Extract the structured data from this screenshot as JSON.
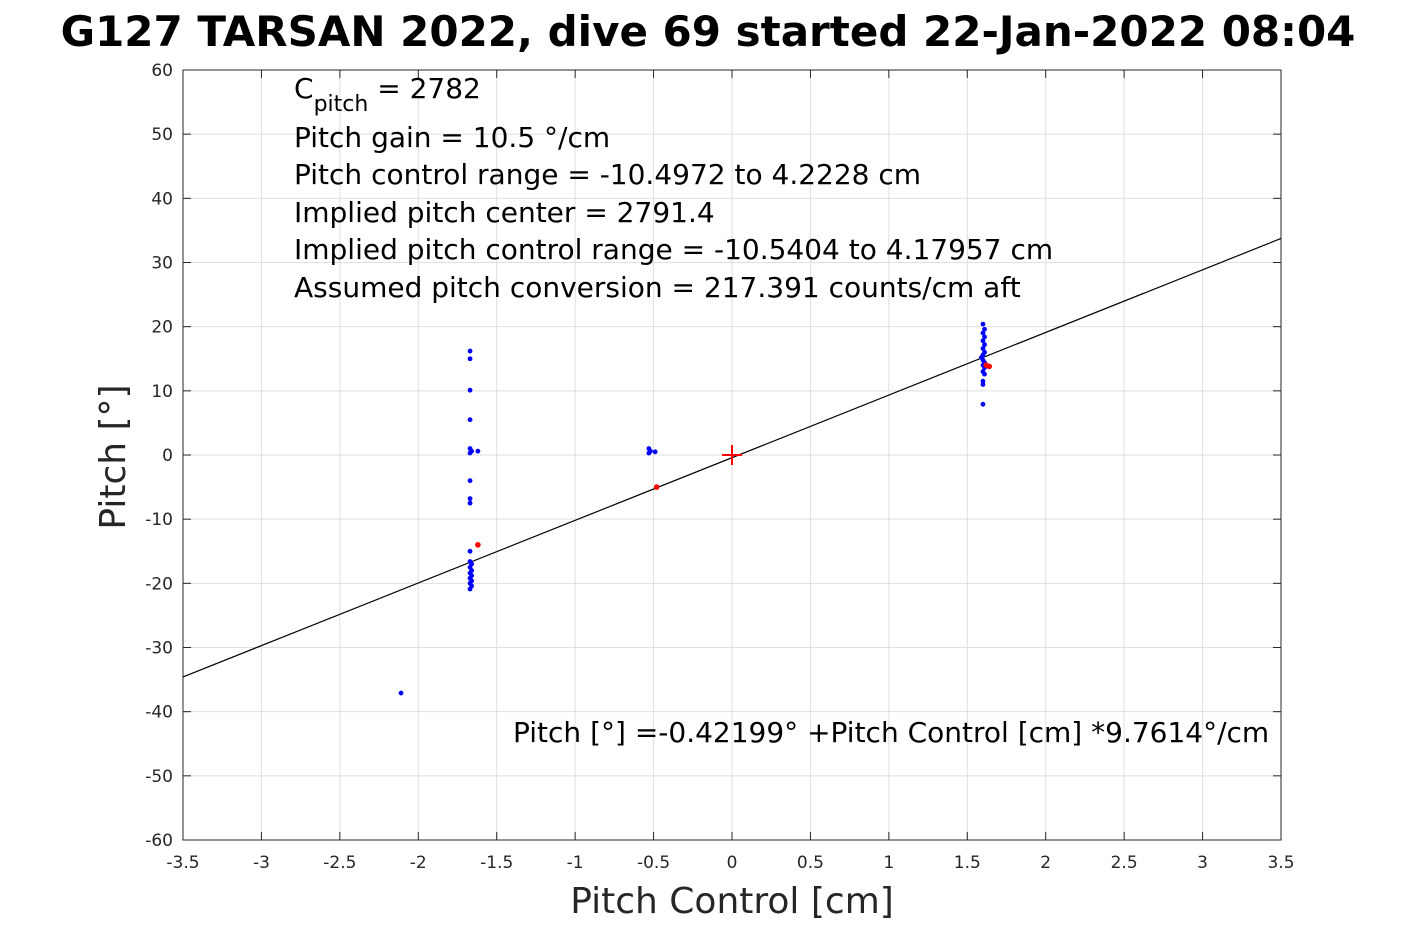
{
  "chart_data": {
    "type": "scatter",
    "title": "G127 TARSAN 2022, dive 69 started 22-Jan-2022 08:04",
    "xlabel": "Pitch Control [cm]",
    "ylabel": "Pitch [°]",
    "xlim": [
      -3.5,
      3.5
    ],
    "ylim": [
      -60,
      60
    ],
    "xticks": [
      -3.5,
      -3,
      -2.5,
      -2,
      -1.5,
      -1,
      -0.5,
      0,
      0.5,
      1,
      1.5,
      2,
      2.5,
      3,
      3.5
    ],
    "yticks": [
      -60,
      -50,
      -40,
      -30,
      -20,
      -10,
      0,
      10,
      20,
      30,
      40,
      50,
      60
    ],
    "xtick_labels": [
      "-3.5",
      "-3",
      "-2.5",
      "-2",
      "-1.5",
      "-1",
      "-0.5",
      "0",
      "0.5",
      "1",
      "1.5",
      "2",
      "2.5",
      "3",
      "3.5"
    ],
    "ytick_labels": [
      "-60",
      "-50",
      "-40",
      "-30",
      "-20",
      "-10",
      "0",
      "10",
      "20",
      "30",
      "40",
      "50",
      "60"
    ],
    "grid": true,
    "series": [
      {
        "color": "#0000ff",
        "points": [
          [
            -2.11,
            -37.1
          ],
          [
            -1.67,
            16.2
          ],
          [
            -1.67,
            15.0
          ],
          [
            -1.67,
            10.1
          ],
          [
            -1.67,
            5.5
          ],
          [
            -1.67,
            1.0
          ],
          [
            -1.66,
            0.6
          ],
          [
            -1.67,
            0.3
          ],
          [
            -1.62,
            0.6
          ],
          [
            -1.67,
            -4.0
          ],
          [
            -1.67,
            -6.8
          ],
          [
            -1.67,
            -7.5
          ],
          [
            -1.67,
            -15.0
          ],
          [
            -1.67,
            -16.6
          ],
          [
            -1.66,
            -17.0
          ],
          [
            -1.67,
            -17.5
          ],
          [
            -1.66,
            -18.0
          ],
          [
            -1.67,
            -18.4
          ],
          [
            -1.66,
            -18.8
          ],
          [
            -1.67,
            -19.2
          ],
          [
            -1.66,
            -19.6
          ],
          [
            -1.67,
            -20.0
          ],
          [
            -1.66,
            -20.4
          ],
          [
            -1.67,
            -20.9
          ],
          [
            -0.53,
            1.0
          ],
          [
            -0.52,
            0.6
          ],
          [
            -0.53,
            0.3
          ],
          [
            -0.49,
            0.5
          ],
          [
            1.6,
            20.4
          ],
          [
            1.61,
            19.6
          ],
          [
            1.6,
            19.0
          ],
          [
            1.61,
            18.4
          ],
          [
            1.6,
            17.8
          ],
          [
            1.61,
            17.2
          ],
          [
            1.6,
            16.6
          ],
          [
            1.61,
            16.0
          ],
          [
            1.6,
            15.6
          ],
          [
            1.59,
            15.2
          ],
          [
            1.6,
            14.8
          ],
          [
            1.61,
            14.4
          ],
          [
            1.6,
            14.0
          ],
          [
            1.61,
            13.6
          ],
          [
            1.6,
            13.0
          ],
          [
            1.61,
            12.6
          ],
          [
            1.6,
            11.5
          ],
          [
            1.6,
            11.0
          ],
          [
            1.6,
            7.9
          ]
        ]
      },
      {
        "color": "#ff0000",
        "points": [
          [
            -1.62,
            -14.0
          ],
          [
            -0.48,
            -5.0
          ],
          [
            1.62,
            14.0
          ],
          [
            1.64,
            13.8
          ]
        ]
      }
    ],
    "center_marker": {
      "x": 0,
      "y": 0,
      "color": "#ff0000"
    },
    "fit_line": {
      "intercept": -0.42199,
      "slope": 9.7614,
      "color": "#000000"
    },
    "annotations": {
      "cpitch_main": "C",
      "cpitch_sub": "pitch",
      "cpitch_value": " = 2782",
      "lines": [
        "Pitch gain = 10.5 °/cm",
        "Pitch control range = -10.4972 to 4.2228 cm",
        "Implied pitch center = 2791.4",
        "Implied pitch control range = -10.5404 to 4.17957 cm",
        "Assumed pitch conversion = 217.391 counts/cm aft"
      ],
      "fit_equation": "Pitch [°] =-0.42199° +Pitch Control [cm] *9.7614°/cm"
    }
  }
}
